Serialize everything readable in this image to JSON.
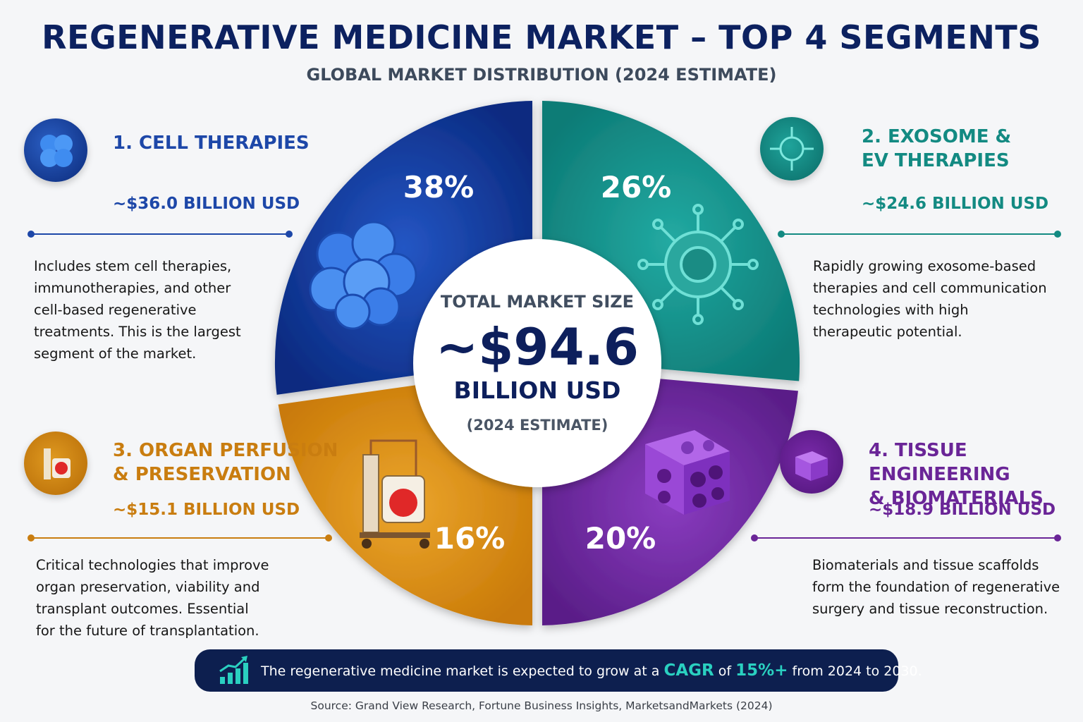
{
  "header": {
    "title": "REGENERATIVE MEDICINE MARKET – TOP 4 SEGMENTS",
    "subtitle": "GLOBAL MARKET DISTRIBUTION (2024 ESTIMATE)"
  },
  "center": {
    "label": "TOTAL MARKET SIZE",
    "value": "~$94.6",
    "unit": "BILLION USD",
    "note": "(2024 ESTIMATE)"
  },
  "chart_data": {
    "type": "pie",
    "title": "REGENERATIVE MEDICINE MARKET – TOP 4 SEGMENTS",
    "subtitle": "GLOBAL MARKET DISTRIBUTION (2024 ESTIMATE)",
    "slices": [
      {
        "name": "1. CELL THERAPIES",
        "percent": 38,
        "label": "38%",
        "value_text": "~$36.0 BILLION USD",
        "value_billion_usd": 36.0,
        "color": "#12399f"
      },
      {
        "name": "2. EXOSOME & EV THERAPIES",
        "percent": 26,
        "label": "26%",
        "value_text": "~$24.6 BILLION USD",
        "value_billion_usd": 24.6,
        "color": "#16948d"
      },
      {
        "name": "4. TISSUE ENGINEERING & BIOMATERIALS",
        "percent": 20,
        "label": "20%",
        "value_text": "~$18.9 BILLION USD",
        "value_billion_usd": 18.9,
        "color": "#6e2a9a"
      },
      {
        "name": "3. ORGAN PERFUSION & PRESERVATION",
        "percent": 16,
        "label": "16%",
        "value_text": "~$15.1 BILLION USD",
        "value_billion_usd": 15.1,
        "color": "#d98e12"
      }
    ],
    "total_text": "~$94.6 BILLION USD"
  },
  "segments": {
    "cell": {
      "name_line1": "1. CELL THERAPIES",
      "value": "~$36.0 BILLION USD",
      "color": "#1d47a8",
      "icon": "cell-cluster-icon",
      "desc": [
        "Includes stem cell therapies,",
        "immunotherapies, and other",
        "cell-based regenerative",
        "treatments. This is the largest",
        "segment of the market."
      ]
    },
    "exosome": {
      "name_line1": "2. EXOSOME &",
      "name_line2": "EV THERAPIES",
      "value": "~$24.6 BILLION USD",
      "color": "#138a82",
      "icon": "exosome-icon",
      "desc": [
        "Rapidly growing exosome-based",
        "therapies and cell communication",
        "technologies with high",
        "therapeutic potential."
      ]
    },
    "organ": {
      "name_line1": "3. ORGAN PERFUSION",
      "name_line2": "& PRESERVATION",
      "value": "~$15.1 BILLION USD",
      "color": "#c97d10",
      "icon": "perfusion-device-icon",
      "desc": [
        "Critical technologies that improve",
        "organ preservation, viability and",
        "transplant outcomes. Essential",
        "for the future of transplantation."
      ]
    },
    "tissue": {
      "name_line1": "4. TISSUE ENGINEERING",
      "name_line2": "& BIOMATERIALS",
      "value": "~$18.9 BILLION USD",
      "color": "#6a2597",
      "icon": "scaffold-icon",
      "desc": [
        "Biomaterials and tissue scaffolds",
        "form the foundation of regenerative",
        "surgery and tissue reconstruction."
      ]
    }
  },
  "banner": {
    "icon": "growth-chart-icon",
    "text_before": "The regenerative medicine market is expected to grow at a ",
    "cagr_word": "CAGR",
    "text_mid": " of ",
    "cagr_value": "15%+",
    "text_after": " from 2024 to 2030."
  },
  "source": "Source: Grand View Research, Fortune Business Insights, MarketsandMarkets (2024)"
}
